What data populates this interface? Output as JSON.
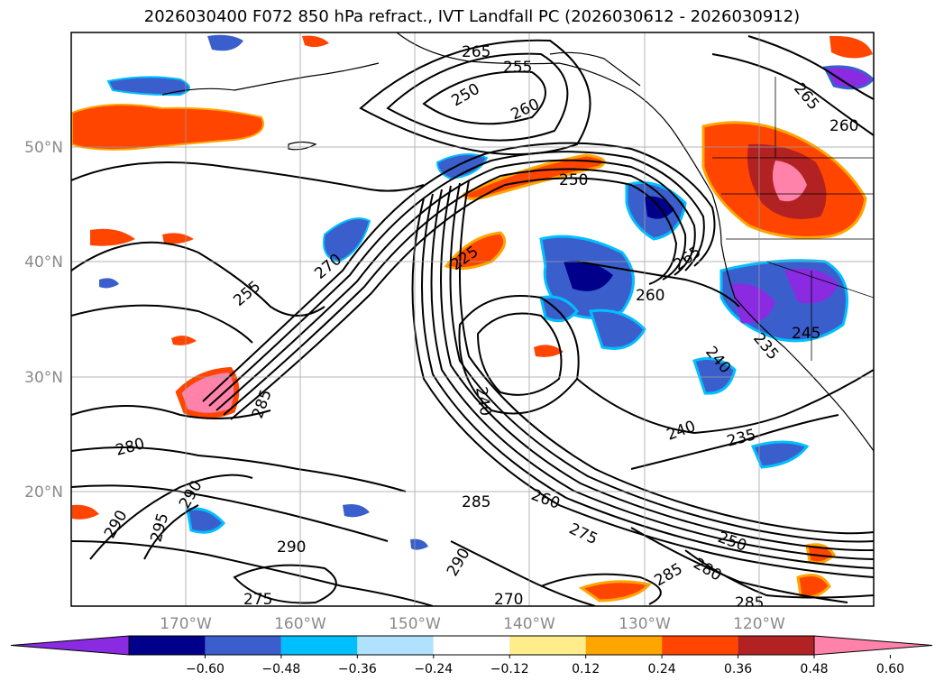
{
  "title": "2026030400 F072 850 hPa refract., IVT Landfall PC (2026030612 - 2026030912)",
  "lat_labels": [
    "50°N",
    "40°N",
    "30°N",
    "20°N"
  ],
  "lon_labels": [
    "170°W",
    "160°W",
    "150°W",
    "140°W",
    "130°W",
    "120°W"
  ],
  "colorbar": {
    "colors": [
      "#8a2be2",
      "#00008b",
      "#3a5fcd",
      "#00bfff",
      "#b0e2ff",
      "#ffffff",
      "#ffec8b",
      "#ffa500",
      "#ff4500",
      "#b22222",
      "#ff82ab"
    ],
    "tick_labels": [
      "−0.60",
      "−0.48",
      "−0.36",
      "−0.24",
      "−0.12",
      "0.12",
      "0.24",
      "0.36",
      "0.48",
      "0.60"
    ]
  },
  "contour_labels": [
    "265",
    "255",
    "250",
    "260",
    "250",
    "265",
    "260",
    "255",
    "270",
    "225",
    "265",
    "260",
    "240",
    "245",
    "235",
    "240",
    "240",
    "235",
    "285",
    "280",
    "290",
    "295",
    "290",
    "285",
    "260",
    "275",
    "250",
    "280",
    "285",
    "290",
    "290",
    "275",
    "270",
    "285"
  ]
}
